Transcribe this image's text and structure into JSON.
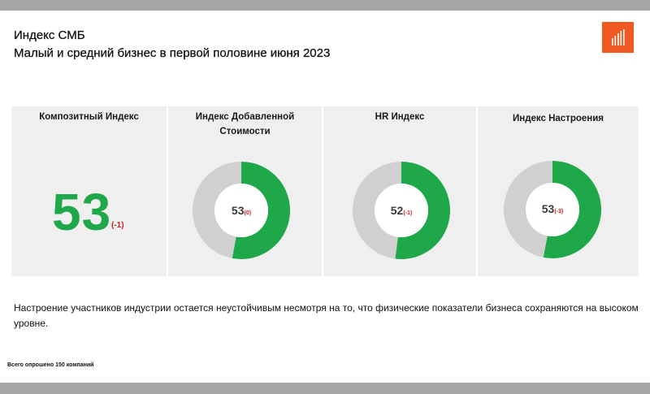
{
  "header": {
    "title_line1": "Индекс СМБ",
    "title_line2": "Малый и средний бизнес в первой половине июня 2023"
  },
  "colors": {
    "accent": "#f05a22",
    "positive": "#1fa84a",
    "negative": "#cc1f1f",
    "ring_rest": "#d0d0d0",
    "panel_bg": "#efefef"
  },
  "chart_data": [
    {
      "type": "table",
      "title": "Композитный Индекс",
      "value": "53",
      "change": "(-1)"
    },
    {
      "type": "pie",
      "title": "Индекс Добавленной Стоимости",
      "value": 53,
      "value_text": "53",
      "change": "(0)",
      "max": 100
    },
    {
      "type": "pie",
      "title": "HR Индекс",
      "value": 52,
      "value_text": "52",
      "change": "(-1)",
      "max": 100
    },
    {
      "type": "pie",
      "title": "Индекс Настроения",
      "value": 53,
      "value_text": "53",
      "change": "(-3)",
      "max": 100
    }
  ],
  "note": "Настроение участников индустрии остается неустойчивым несмотря на то, что физические показатели бизнеса сохраняются на высоком уровне.",
  "footnote": "Всего опрошено 150 компаний"
}
